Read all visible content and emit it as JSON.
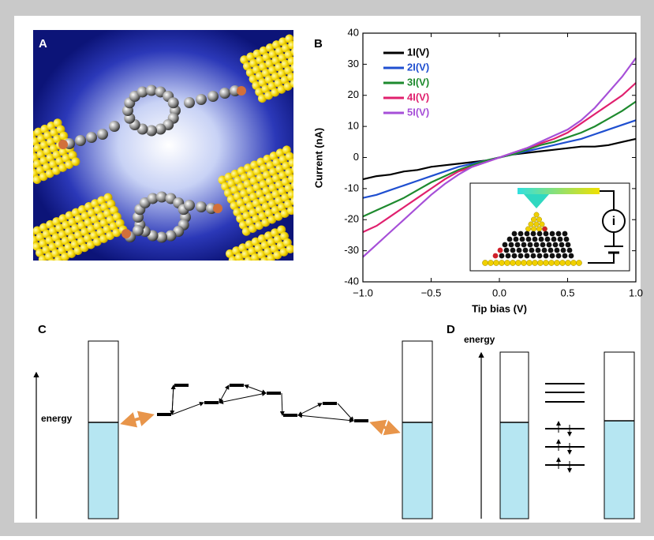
{
  "panels": {
    "a": "A",
    "b": "B",
    "c": "C",
    "d": "D"
  },
  "chart_data": {
    "type": "line",
    "x": [
      -1,
      -0.9,
      -0.8,
      -0.7,
      -0.6,
      -0.5,
      -0.4,
      -0.3,
      -0.2,
      -0.1,
      0,
      0.1,
      0.2,
      0.3,
      0.4,
      0.5,
      0.6,
      0.7,
      0.8,
      0.9,
      1
    ],
    "series": [
      {
        "name": "1I(V)",
        "color": "#000000",
        "values": [
          -7,
          -6,
          -5.5,
          -4.5,
          -4,
          -3,
          -2.5,
          -2,
          -1.5,
          -1,
          0,
          1,
          1.5,
          2,
          2.5,
          3,
          3.5,
          3.5,
          4,
          5,
          6
        ]
      },
      {
        "name": "2I(V)",
        "color": "#1f4fd0",
        "values": [
          -13,
          -12,
          -10.5,
          -9,
          -7.5,
          -6,
          -4.5,
          -3,
          -2,
          -1,
          0,
          1,
          2,
          3,
          4,
          5,
          6,
          7.5,
          9,
          10.5,
          12
        ]
      },
      {
        "name": "3I(V)",
        "color": "#1e8a2e",
        "values": [
          -19,
          -17,
          -15,
          -13,
          -10.5,
          -8,
          -6,
          -4,
          -2.5,
          -1,
          0,
          1,
          2.5,
          4,
          5,
          6.5,
          8,
          10,
          12.5,
          15,
          18
        ]
      },
      {
        "name": "4I(V)",
        "color": "#e0206e",
        "values": [
          -24,
          -22,
          -19,
          -16,
          -13,
          -10,
          -7,
          -4.5,
          -3,
          -1.5,
          0,
          1.5,
          3,
          4.5,
          6,
          8,
          11,
          14,
          17,
          20,
          24
        ]
      },
      {
        "name": "5I(V)",
        "color": "#a64fd8",
        "values": [
          -32,
          -28,
          -24,
          -20,
          -16,
          -12,
          -8.5,
          -5.5,
          -3,
          -1.5,
          0,
          1.5,
          3,
          5,
          7,
          9,
          12,
          16,
          21,
          26,
          32
        ]
      }
    ],
    "xlabel": "Tip bias (V)",
    "ylabel": "Current (nA)",
    "xlim": [
      -1,
      1
    ],
    "ylim": [
      -40,
      40
    ],
    "xticks": [
      {
        "value": -1,
        "label": "−1.0"
      },
      {
        "value": -0.5,
        "label": "−0.5"
      },
      {
        "value": 0,
        "label": "0.0"
      },
      {
        "value": 0.5,
        "label": "0.5"
      },
      {
        "value": 1,
        "label": "1.0"
      }
    ],
    "yticks": [
      -40,
      -30,
      -20,
      -10,
      0,
      10,
      20,
      30,
      40
    ],
    "legend": "upper-left",
    "inset_label": "i"
  },
  "panel_c": {
    "axis_label": "energy"
  },
  "panel_d": {
    "axis_label": "energy"
  }
}
